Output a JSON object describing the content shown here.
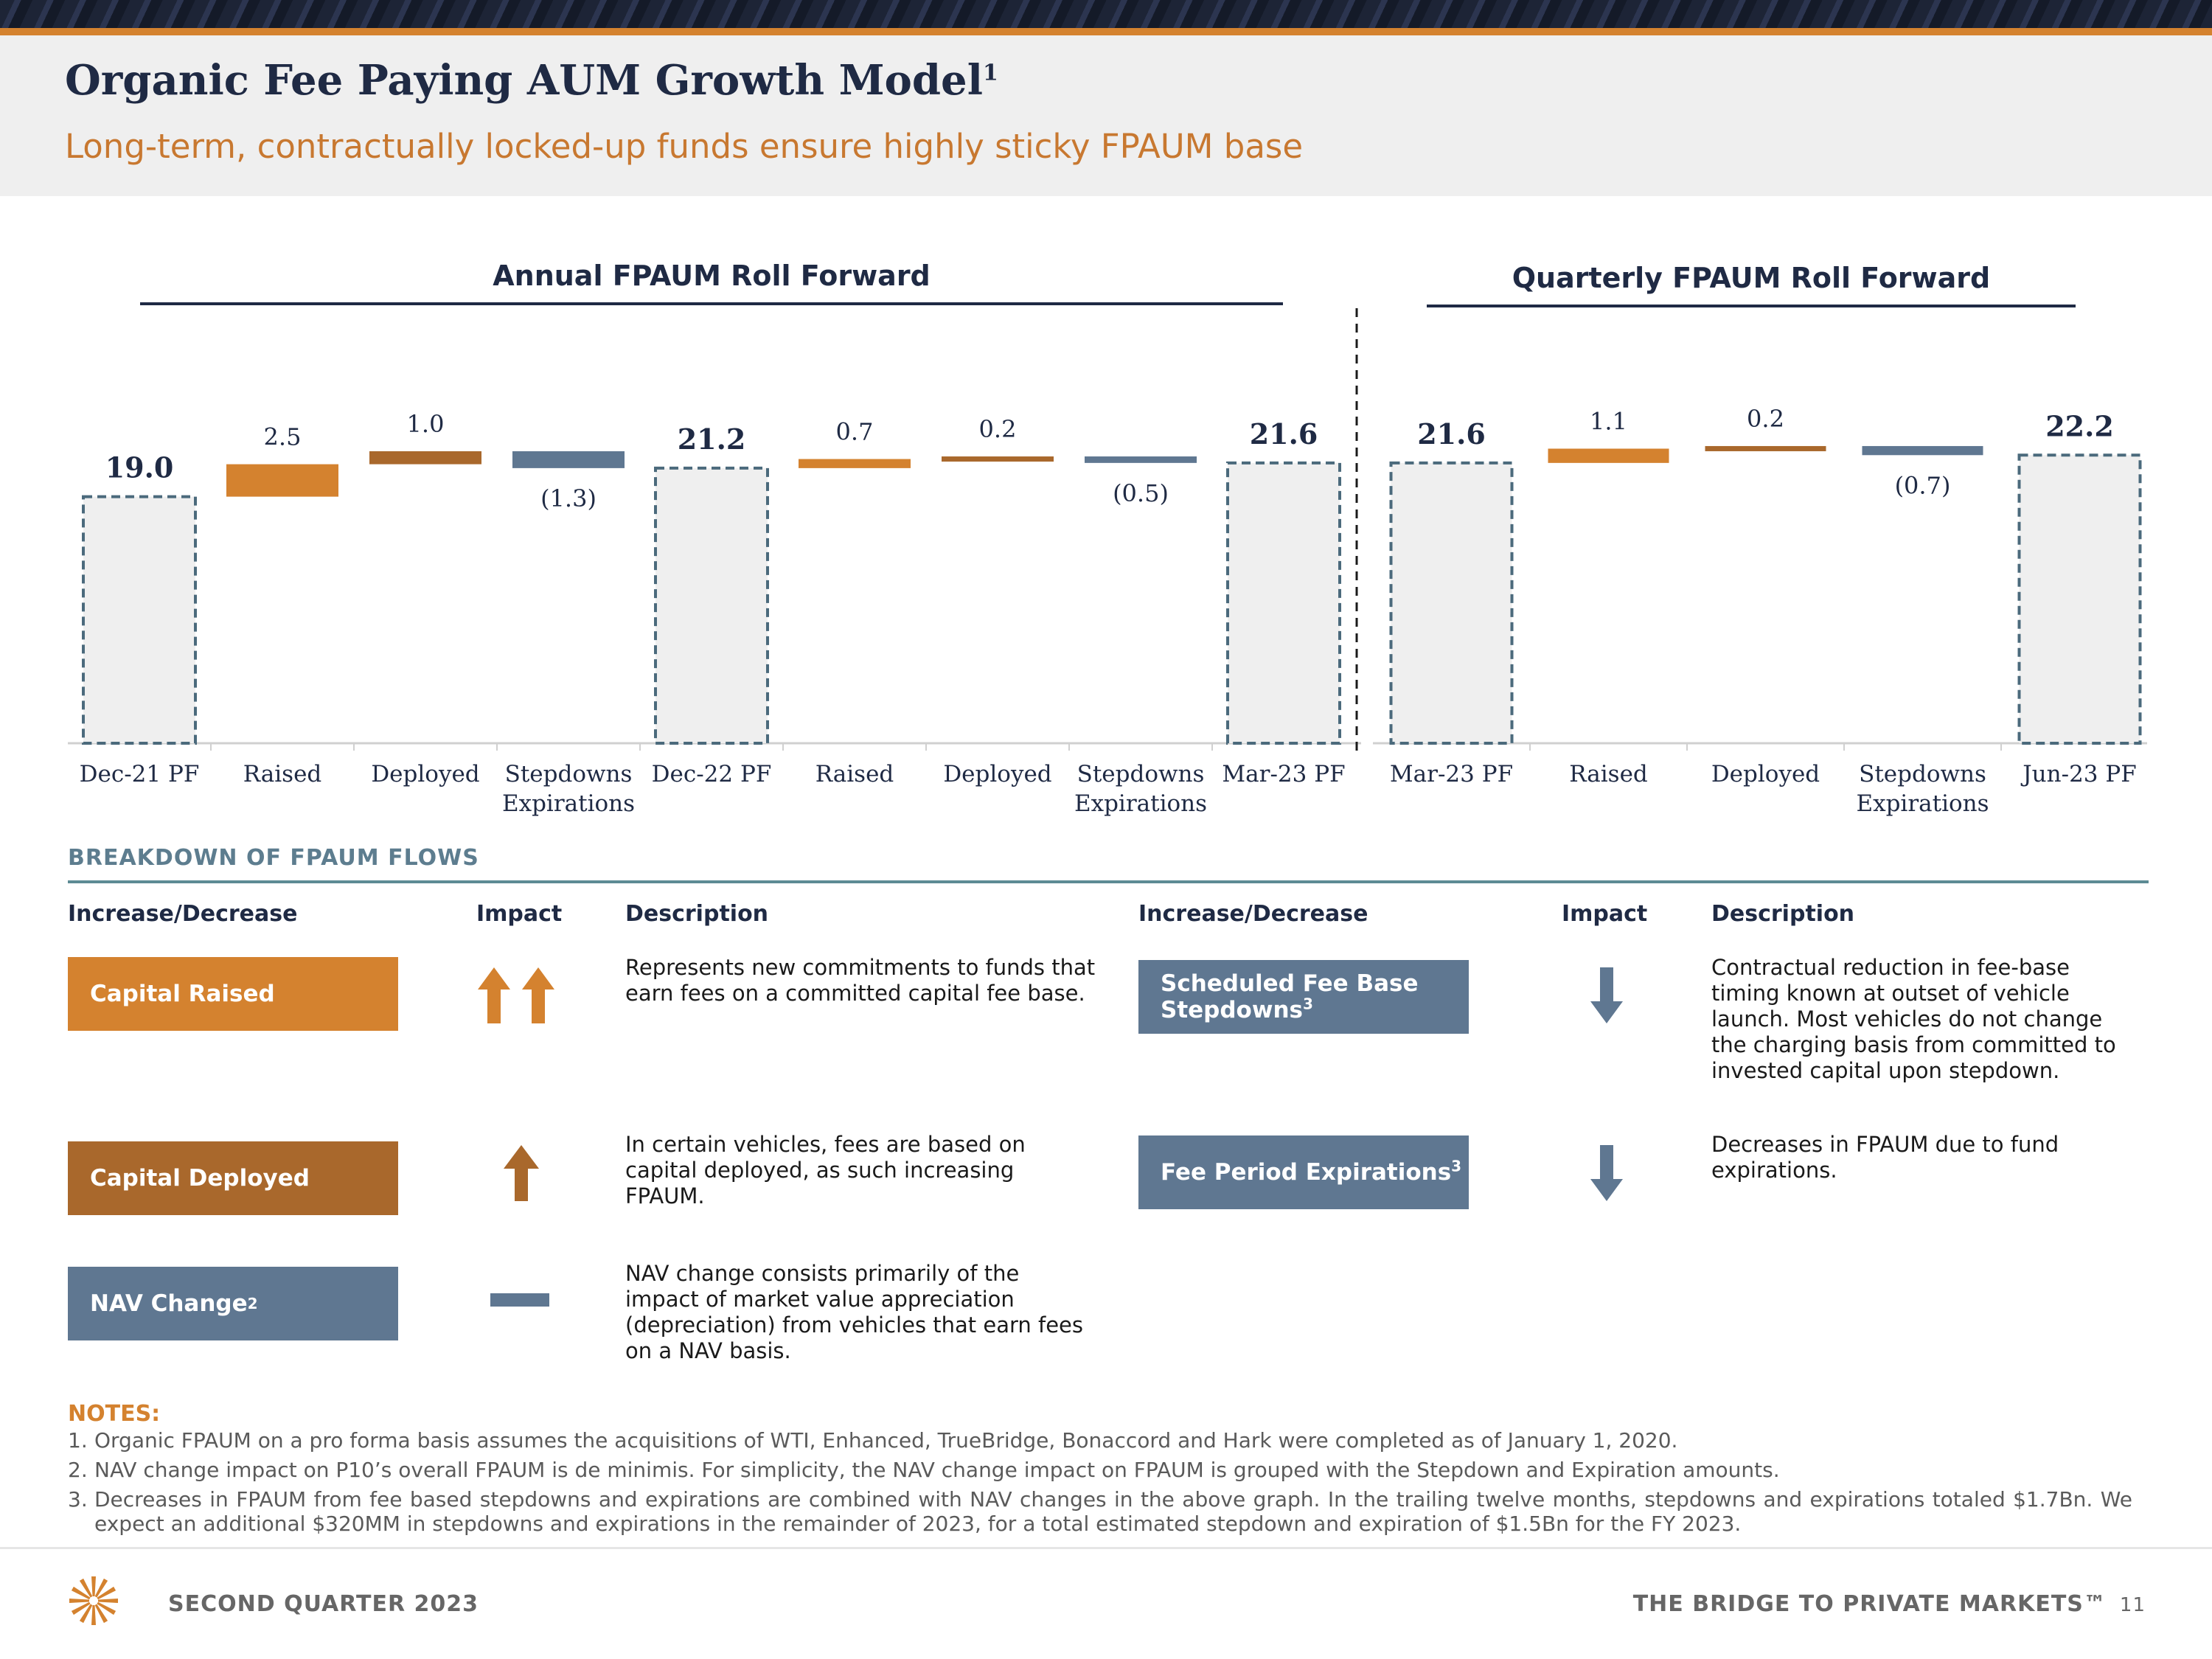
{
  "header": {
    "title": "Organic Fee Paying AUM Growth Model",
    "title_sup": "1",
    "subtitle": "Long-term, contractually locked-up funds ensure highly sticky FPAUM base"
  },
  "chart_data": [
    {
      "type": "bar",
      "title": "Annual FPAUM Roll Forward",
      "categories": [
        "Dec-21 PF",
        "Raised",
        "Deployed",
        "Stepdowns Expirations",
        "Dec-22 PF",
        "Raised",
        "Deployed",
        "Stepdowns Expirations",
        "Mar-23 PF"
      ],
      "values": [
        19.0,
        2.5,
        1.0,
        -1.3,
        21.2,
        0.7,
        0.2,
        -0.5,
        21.6
      ],
      "value_labels": [
        "19.0",
        "2.5",
        "1.0",
        "(1.3)",
        "21.2",
        "0.7",
        "0.2",
        "(0.5)",
        "21.6"
      ],
      "bar_kinds": [
        "total",
        "raised",
        "deployed",
        "stepdown",
        "total",
        "raised",
        "deployed",
        "stepdown",
        "total"
      ],
      "ylim": [
        0,
        25
      ]
    },
    {
      "type": "bar",
      "title": "Quarterly FPAUM Roll Forward",
      "categories": [
        "Mar-23 PF",
        "Raised",
        "Deployed",
        "Stepdowns Expirations",
        "Jun-23 PF"
      ],
      "values": [
        21.6,
        1.1,
        0.2,
        -0.7,
        22.2
      ],
      "value_labels": [
        "21.6",
        "1.1",
        "0.2",
        "(0.7)",
        "22.2"
      ],
      "bar_kinds": [
        "total",
        "raised",
        "deployed",
        "stepdown",
        "total"
      ],
      "ylim": [
        0,
        25
      ]
    }
  ],
  "colors": {
    "raised": "#d4822f",
    "deployed": "#a9682c",
    "stepdown": "#5f7791",
    "total_fill": "#efefef",
    "total_border": "#4b6a7c",
    "navy": "#1f2a44"
  },
  "breakdown": {
    "title": "BREAKDOWN OF FPAUM FLOWS",
    "col_increase": "Increase/Decrease",
    "col_impact": "Impact",
    "col_description": "Description",
    "left_rows": [
      {
        "label": "Capital Raised",
        "sup": "",
        "description": "Represents new commitments to funds that earn fees on a committed capital fee base.",
        "icon": "double-up-arrow-icon"
      },
      {
        "label": "Capital Deployed",
        "sup": "",
        "description": "In certain vehicles, fees are based on capital deployed, as such increasing FPAUM.",
        "icon": "up-arrow-icon"
      },
      {
        "label": "NAV Change",
        "sup": "2",
        "description": "NAV change consists primarily of the impact of market value appreciation (depreciation) from vehicles that earn fees on a NAV basis.",
        "icon": "dash-icon"
      }
    ],
    "right_rows": [
      {
        "label": "Scheduled Fee Base Stepdowns",
        "sup": "3",
        "description": "Contractual reduction in fee-base timing known at outset of vehicle launch. Most vehicles do not change the charging basis from committed to invested capital upon stepdown.",
        "icon": "down-arrow-icon"
      },
      {
        "label": "Fee Period Expirations",
        "sup": "3",
        "description": "Decreases in FPAUM due to fund expirations.",
        "icon": "down-arrow-icon"
      }
    ]
  },
  "notes": {
    "title": "NOTES:",
    "items": [
      {
        "num": "1.",
        "text": "Organic FPAUM on a pro forma basis assumes the acquisitions of WTI, Enhanced, TrueBridge, Bonaccord and Hark were completed as of January 1, 2020."
      },
      {
        "num": "2.",
        "text": "NAV change impact on P10’s overall FPAUM is de minimis. For simplicity, the NAV change impact on FPAUM is grouped with the Stepdown and Expiration amounts."
      },
      {
        "num": "3.",
        "text": "Decreases in FPAUM from fee based stepdowns and expirations are combined with NAV changes in the above graph. In the trailing twelve months, stepdowns and expirations totaled $1.7Bn. We expect an additional $320MM in stepdowns and expirations in the remainder of 2023, for a total estimated stepdown and expiration of $1.5Bn for the FY 2023."
      }
    ]
  },
  "footer": {
    "left": "SECOND QUARTER 2023",
    "right": "THE BRIDGE TO PRIVATE MARKETS™",
    "page": "11"
  }
}
